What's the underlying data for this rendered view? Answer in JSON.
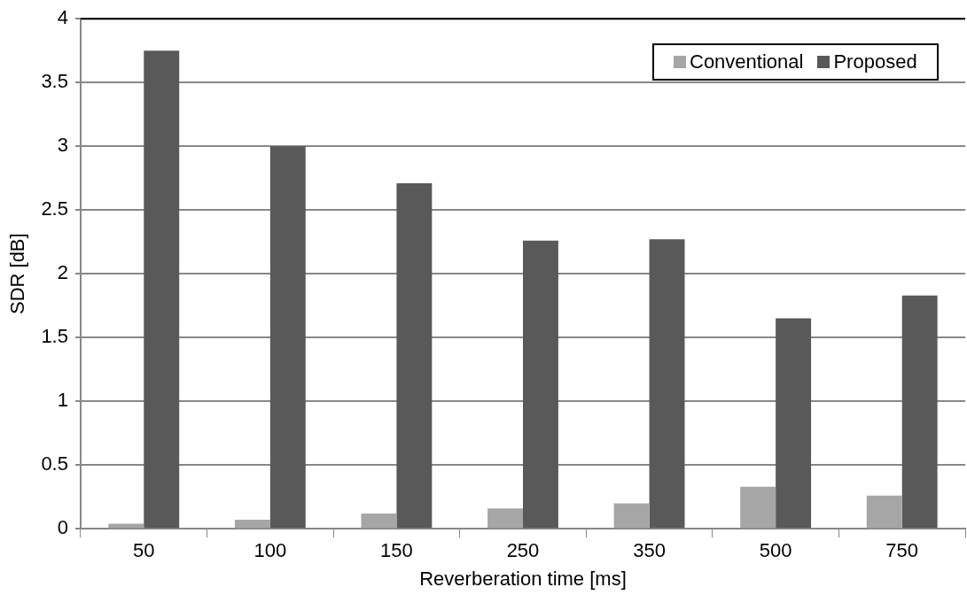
{
  "chart_data": {
    "type": "bar",
    "xlabel": "Reverberation time [ms]",
    "ylabel": "SDR [dB]",
    "categories": [
      "50",
      "100",
      "150",
      "250",
      "350",
      "500",
      "750"
    ],
    "series": [
      {
        "name": "Conventional",
        "color": "#a6a6a6",
        "values": [
          0.04,
          0.07,
          0.12,
          0.16,
          0.2,
          0.33,
          0.26
        ]
      },
      {
        "name": "Proposed",
        "color": "#595959",
        "values": [
          3.75,
          3.0,
          2.71,
          2.26,
          2.27,
          1.65,
          1.83
        ]
      }
    ],
    "ylim": [
      0,
      4
    ],
    "yticks": [
      0,
      0.5,
      1,
      1.5,
      2,
      2.5,
      3,
      3.5,
      4
    ],
    "grid": "y",
    "legend": "top right"
  }
}
